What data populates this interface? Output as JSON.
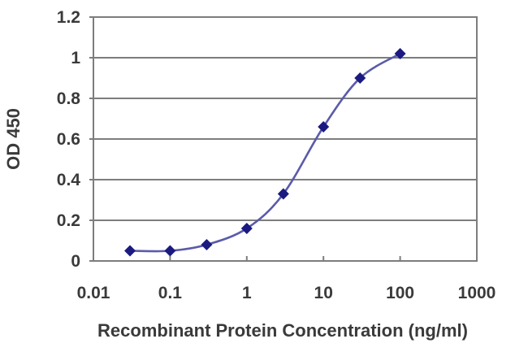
{
  "figure": {
    "background": "#ffffff"
  },
  "chart_data": {
    "type": "line",
    "title": "",
    "xlabel": "Recombinant Protein Concentration (ng/ml)",
    "ylabel": "OD 450",
    "x_scale": "log10",
    "xlim": [
      0.01,
      1000
    ],
    "ylim": [
      0,
      1.2
    ],
    "x_ticks": [
      0.01,
      0.1,
      1,
      10,
      100,
      1000
    ],
    "x_tick_labels": [
      "0.01",
      "0.1",
      "1",
      "10",
      "100",
      "1000"
    ],
    "y_ticks": [
      0,
      0.2,
      0.4,
      0.6,
      0.8,
      1,
      1.2
    ],
    "y_tick_labels": [
      "0",
      "0.2",
      "0.4",
      "0.6",
      "0.8",
      "1",
      "1.2"
    ],
    "grid": "horizontal",
    "legend": "none",
    "series": [
      {
        "name": "OD 450",
        "x": [
          0.03,
          0.1,
          0.3,
          1,
          3,
          10,
          30,
          100
        ],
        "y": [
          0.05,
          0.05,
          0.08,
          0.16,
          0.33,
          0.66,
          0.9,
          1.02
        ],
        "marker": "diamond"
      }
    ],
    "colors": {
      "line": "#5b5baa",
      "marker": "#1a1a80",
      "grid": "#7d7d7d",
      "frame": "#7d7d7d",
      "text": "#3a3a3a"
    }
  }
}
